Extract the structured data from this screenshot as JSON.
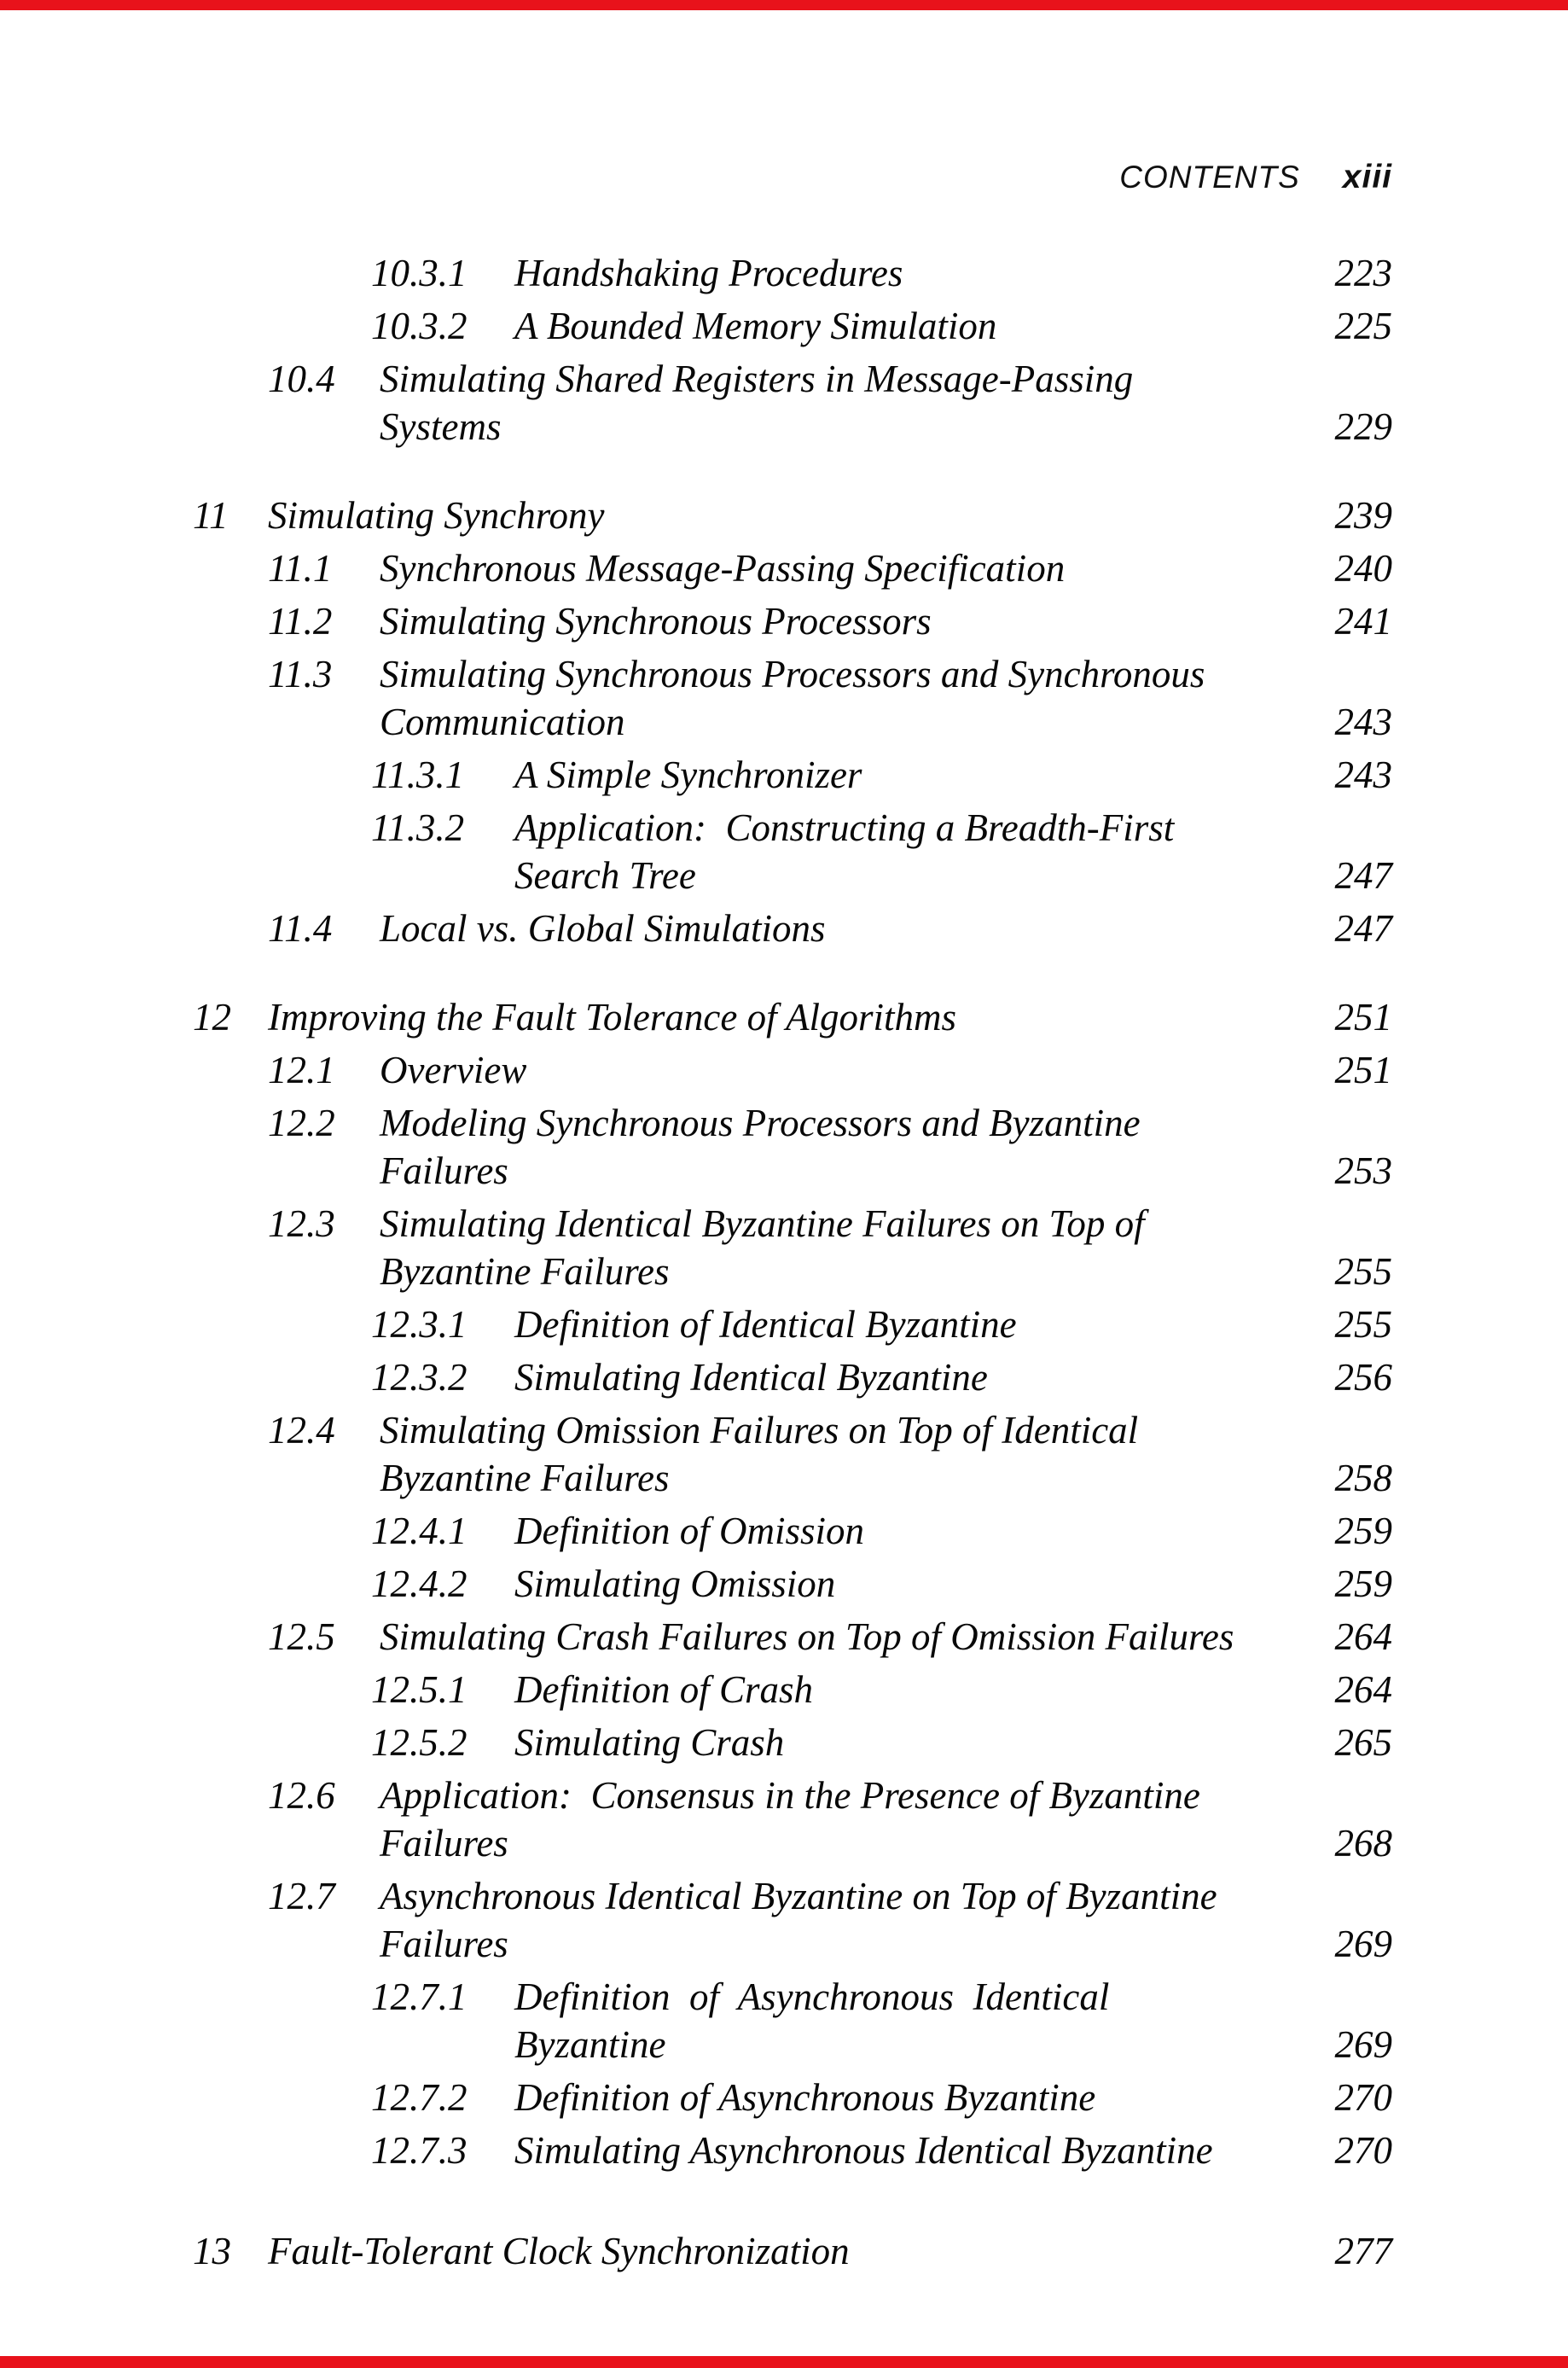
{
  "header": {
    "title": "CONTENTS",
    "page_number": "xiii"
  },
  "scan_edge_color": "#e8121b",
  "toc": {
    "entries": [
      {
        "level": 3,
        "num": "10.3.1",
        "title": "Handshaking Procedures",
        "page": "223"
      },
      {
        "level": 3,
        "num": "10.3.2",
        "title": "A Bounded Memory Simulation",
        "page": "225"
      },
      {
        "level": 2,
        "num": "10.4",
        "title": "Simulating Shared Registers in Message-Passing\nSystems",
        "page": "229"
      },
      {
        "level": 1,
        "num": "11",
        "title": "Simulating Synchrony",
        "page": "239",
        "gap": "lg"
      },
      {
        "level": 2,
        "num": "11.1",
        "title": "Synchronous Message-Passing Specification",
        "page": "240"
      },
      {
        "level": 2,
        "num": "11.2",
        "title": "Simulating Synchronous Processors",
        "page": "241"
      },
      {
        "level": 2,
        "num": "11.3",
        "title": "Simulating Synchronous Processors and Synchronous\nCommunication",
        "page": "243"
      },
      {
        "level": 3,
        "num": "11.3.1",
        "title": "A Simple Synchronizer",
        "page": "243"
      },
      {
        "level": 3,
        "num": "11.3.2",
        "title": "Application:  Constructing a Breadth-First\nSearch Tree",
        "page": "247"
      },
      {
        "level": 2,
        "num": "11.4",
        "title": "Local vs. Global Simulations",
        "page": "247"
      },
      {
        "level": 1,
        "num": "12",
        "title": "Improving the Fault Tolerance of Algorithms",
        "page": "251",
        "gap": "lg"
      },
      {
        "level": 2,
        "num": "12.1",
        "title": "Overview",
        "page": "251"
      },
      {
        "level": 2,
        "num": "12.2",
        "title": "Modeling Synchronous Processors and Byzantine\nFailures",
        "page": "253"
      },
      {
        "level": 2,
        "num": "12.3",
        "title": "Simulating Identical Byzantine Failures on Top of\nByzantine Failures",
        "page": "255"
      },
      {
        "level": 3,
        "num": "12.3.1",
        "title": "Definition of Identical Byzantine",
        "page": "255"
      },
      {
        "level": 3,
        "num": "12.3.2",
        "title": "Simulating Identical Byzantine",
        "page": "256"
      },
      {
        "level": 2,
        "num": "12.4",
        "title": "Simulating Omission Failures on Top of Identical\nByzantine Failures",
        "page": "258"
      },
      {
        "level": 3,
        "num": "12.4.1",
        "title": "Definition of Omission",
        "page": "259"
      },
      {
        "level": 3,
        "num": "12.4.2",
        "title": "Simulating Omission",
        "page": "259"
      },
      {
        "level": 2,
        "num": "12.5",
        "title": "Simulating Crash Failures on Top of Omission Failures",
        "page": "264"
      },
      {
        "level": 3,
        "num": "12.5.1",
        "title": "Definition of Crash",
        "page": "264"
      },
      {
        "level": 3,
        "num": "12.5.2",
        "title": "Simulating Crash",
        "page": "265"
      },
      {
        "level": 2,
        "num": "12.6",
        "title": "Application:  Consensus in the Presence of Byzantine\nFailures",
        "page": "268"
      },
      {
        "level": 2,
        "num": "12.7",
        "title": "Asynchronous Identical Byzantine on Top of Byzantine\nFailures",
        "page": "269"
      },
      {
        "level": 3,
        "num": "12.7.1",
        "title": "Definition  of  Asynchronous  Identical\nByzantine",
        "page": "269"
      },
      {
        "level": 3,
        "num": "12.7.2",
        "title": "Definition of Asynchronous Byzantine",
        "page": "270"
      },
      {
        "level": 3,
        "num": "12.7.3",
        "title": "Simulating Asynchronous Identical Byzantine",
        "page": "270"
      },
      {
        "level": 1,
        "num": "13",
        "title": "Fault-Tolerant Clock Synchronization",
        "page": "277",
        "gap": "xl"
      }
    ]
  }
}
